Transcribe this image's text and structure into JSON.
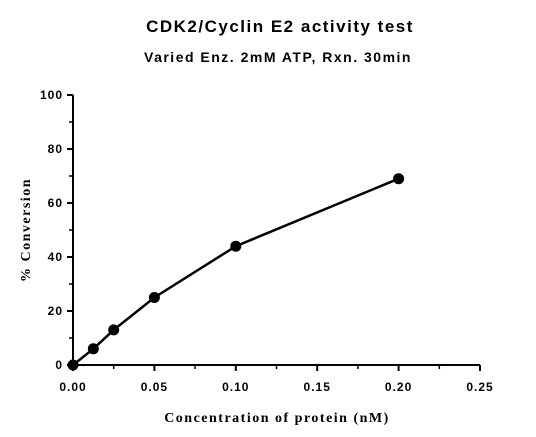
{
  "chart_data": {
    "type": "line",
    "title": "CDK2/Cyclin E2 activity test",
    "subtitle": "Varied Enz. 2mM ATP, Rxn. 30min",
    "xlabel": "Concentration of protein (nM)",
    "ylabel": "% Conversion",
    "xlim": [
      0,
      0.25
    ],
    "ylim": [
      0,
      100
    ],
    "x_ticks": [
      "0.00",
      "0.05",
      "0.10",
      "0.15",
      "0.20",
      "0.25"
    ],
    "y_ticks": [
      "0",
      "20",
      "40",
      "60",
      "80",
      "100"
    ],
    "grid": false,
    "legend": "none",
    "series": [
      {
        "color": "#000000",
        "marker": "circle",
        "x": [
          0,
          0.0125,
          0.025,
          0.05,
          0.1,
          0.2
        ],
        "y": [
          0,
          6,
          13,
          25,
          44,
          69
        ]
      }
    ]
  }
}
